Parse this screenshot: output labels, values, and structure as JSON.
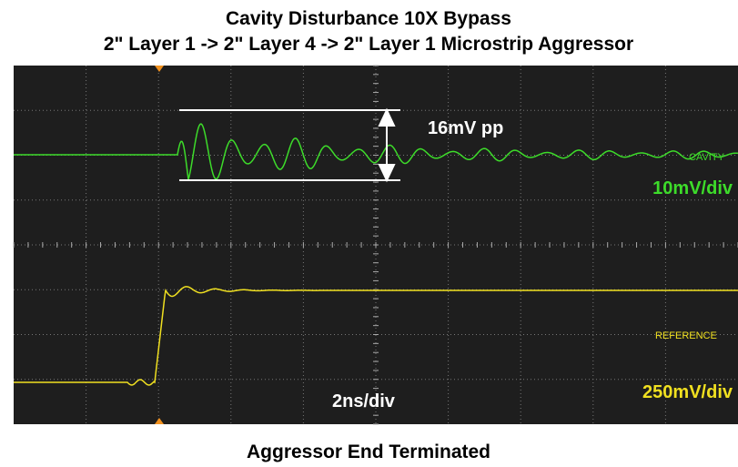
{
  "header": {
    "title_line_1": "Cavity Disturbance  10X Bypass",
    "title_line_2": "2\" Layer 1 -> 2\" Layer 4 -> 2\" Layer 1 Microstrip Aggressor"
  },
  "scope": {
    "annotation": "16mV pp",
    "channel_1_label": "CAVITY",
    "channel_1_scale": "10mV/div",
    "channel_2_label": "REFERENCE",
    "channel_2_scale": "250mV/div",
    "time_scale": "2ns/div"
  },
  "footer": {
    "caption": "Aggressor End Terminated"
  }
}
